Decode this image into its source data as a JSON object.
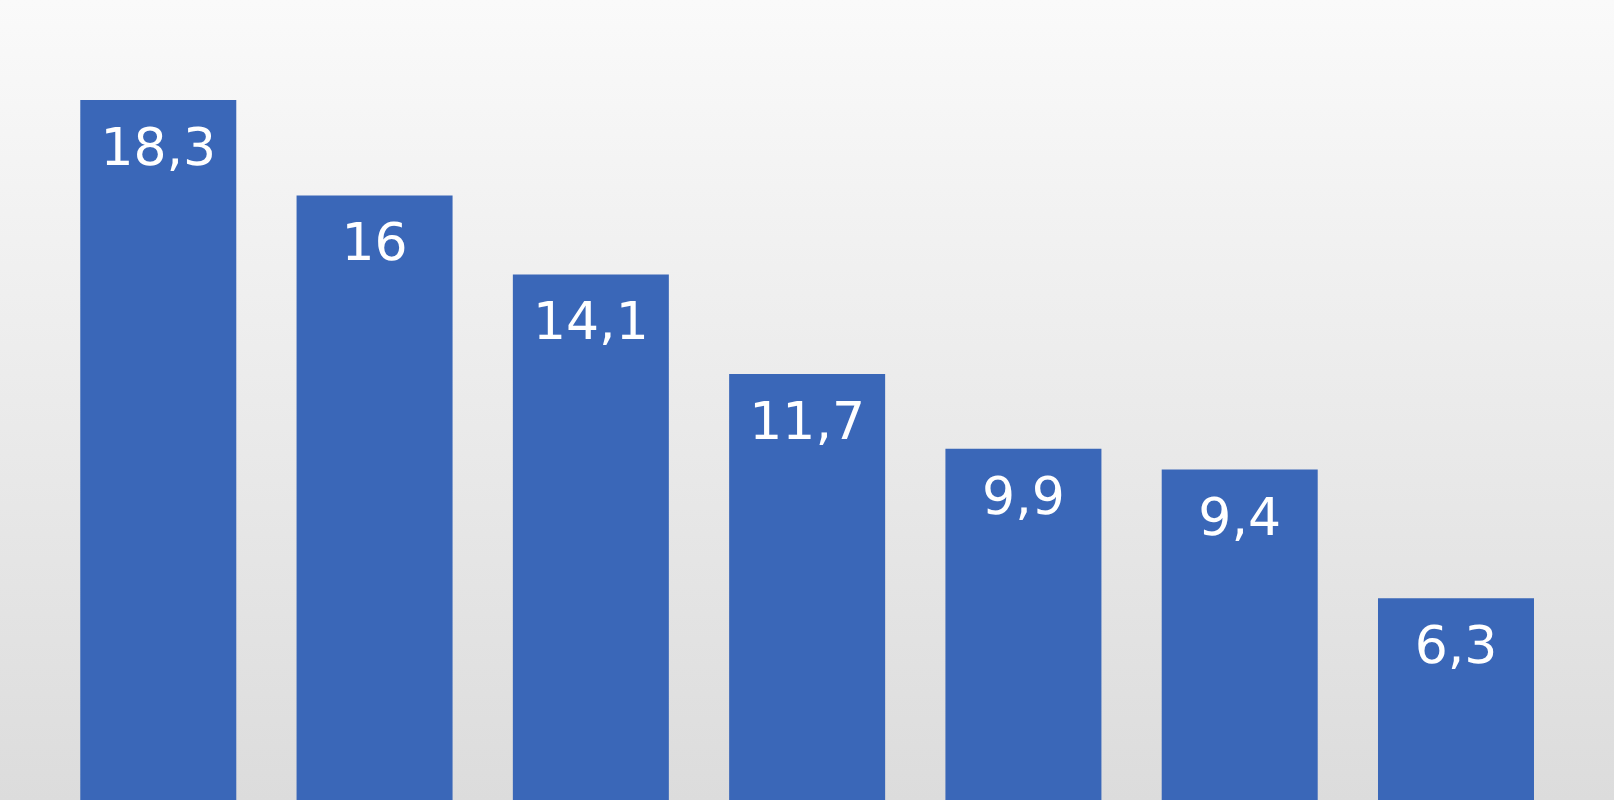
{
  "chart_data": {
    "type": "bar",
    "categories": [
      null,
      null,
      null,
      null,
      null,
      null,
      null
    ],
    "values": [
      18.3,
      16,
      14.1,
      11.7,
      9.9,
      9.4,
      6.3
    ],
    "value_labels": [
      "18,3",
      "16",
      "14,1",
      "11,7",
      "9,9",
      "9,4",
      "6,3"
    ],
    "color": "#3a67b8",
    "grid": false,
    "legend": false
  }
}
